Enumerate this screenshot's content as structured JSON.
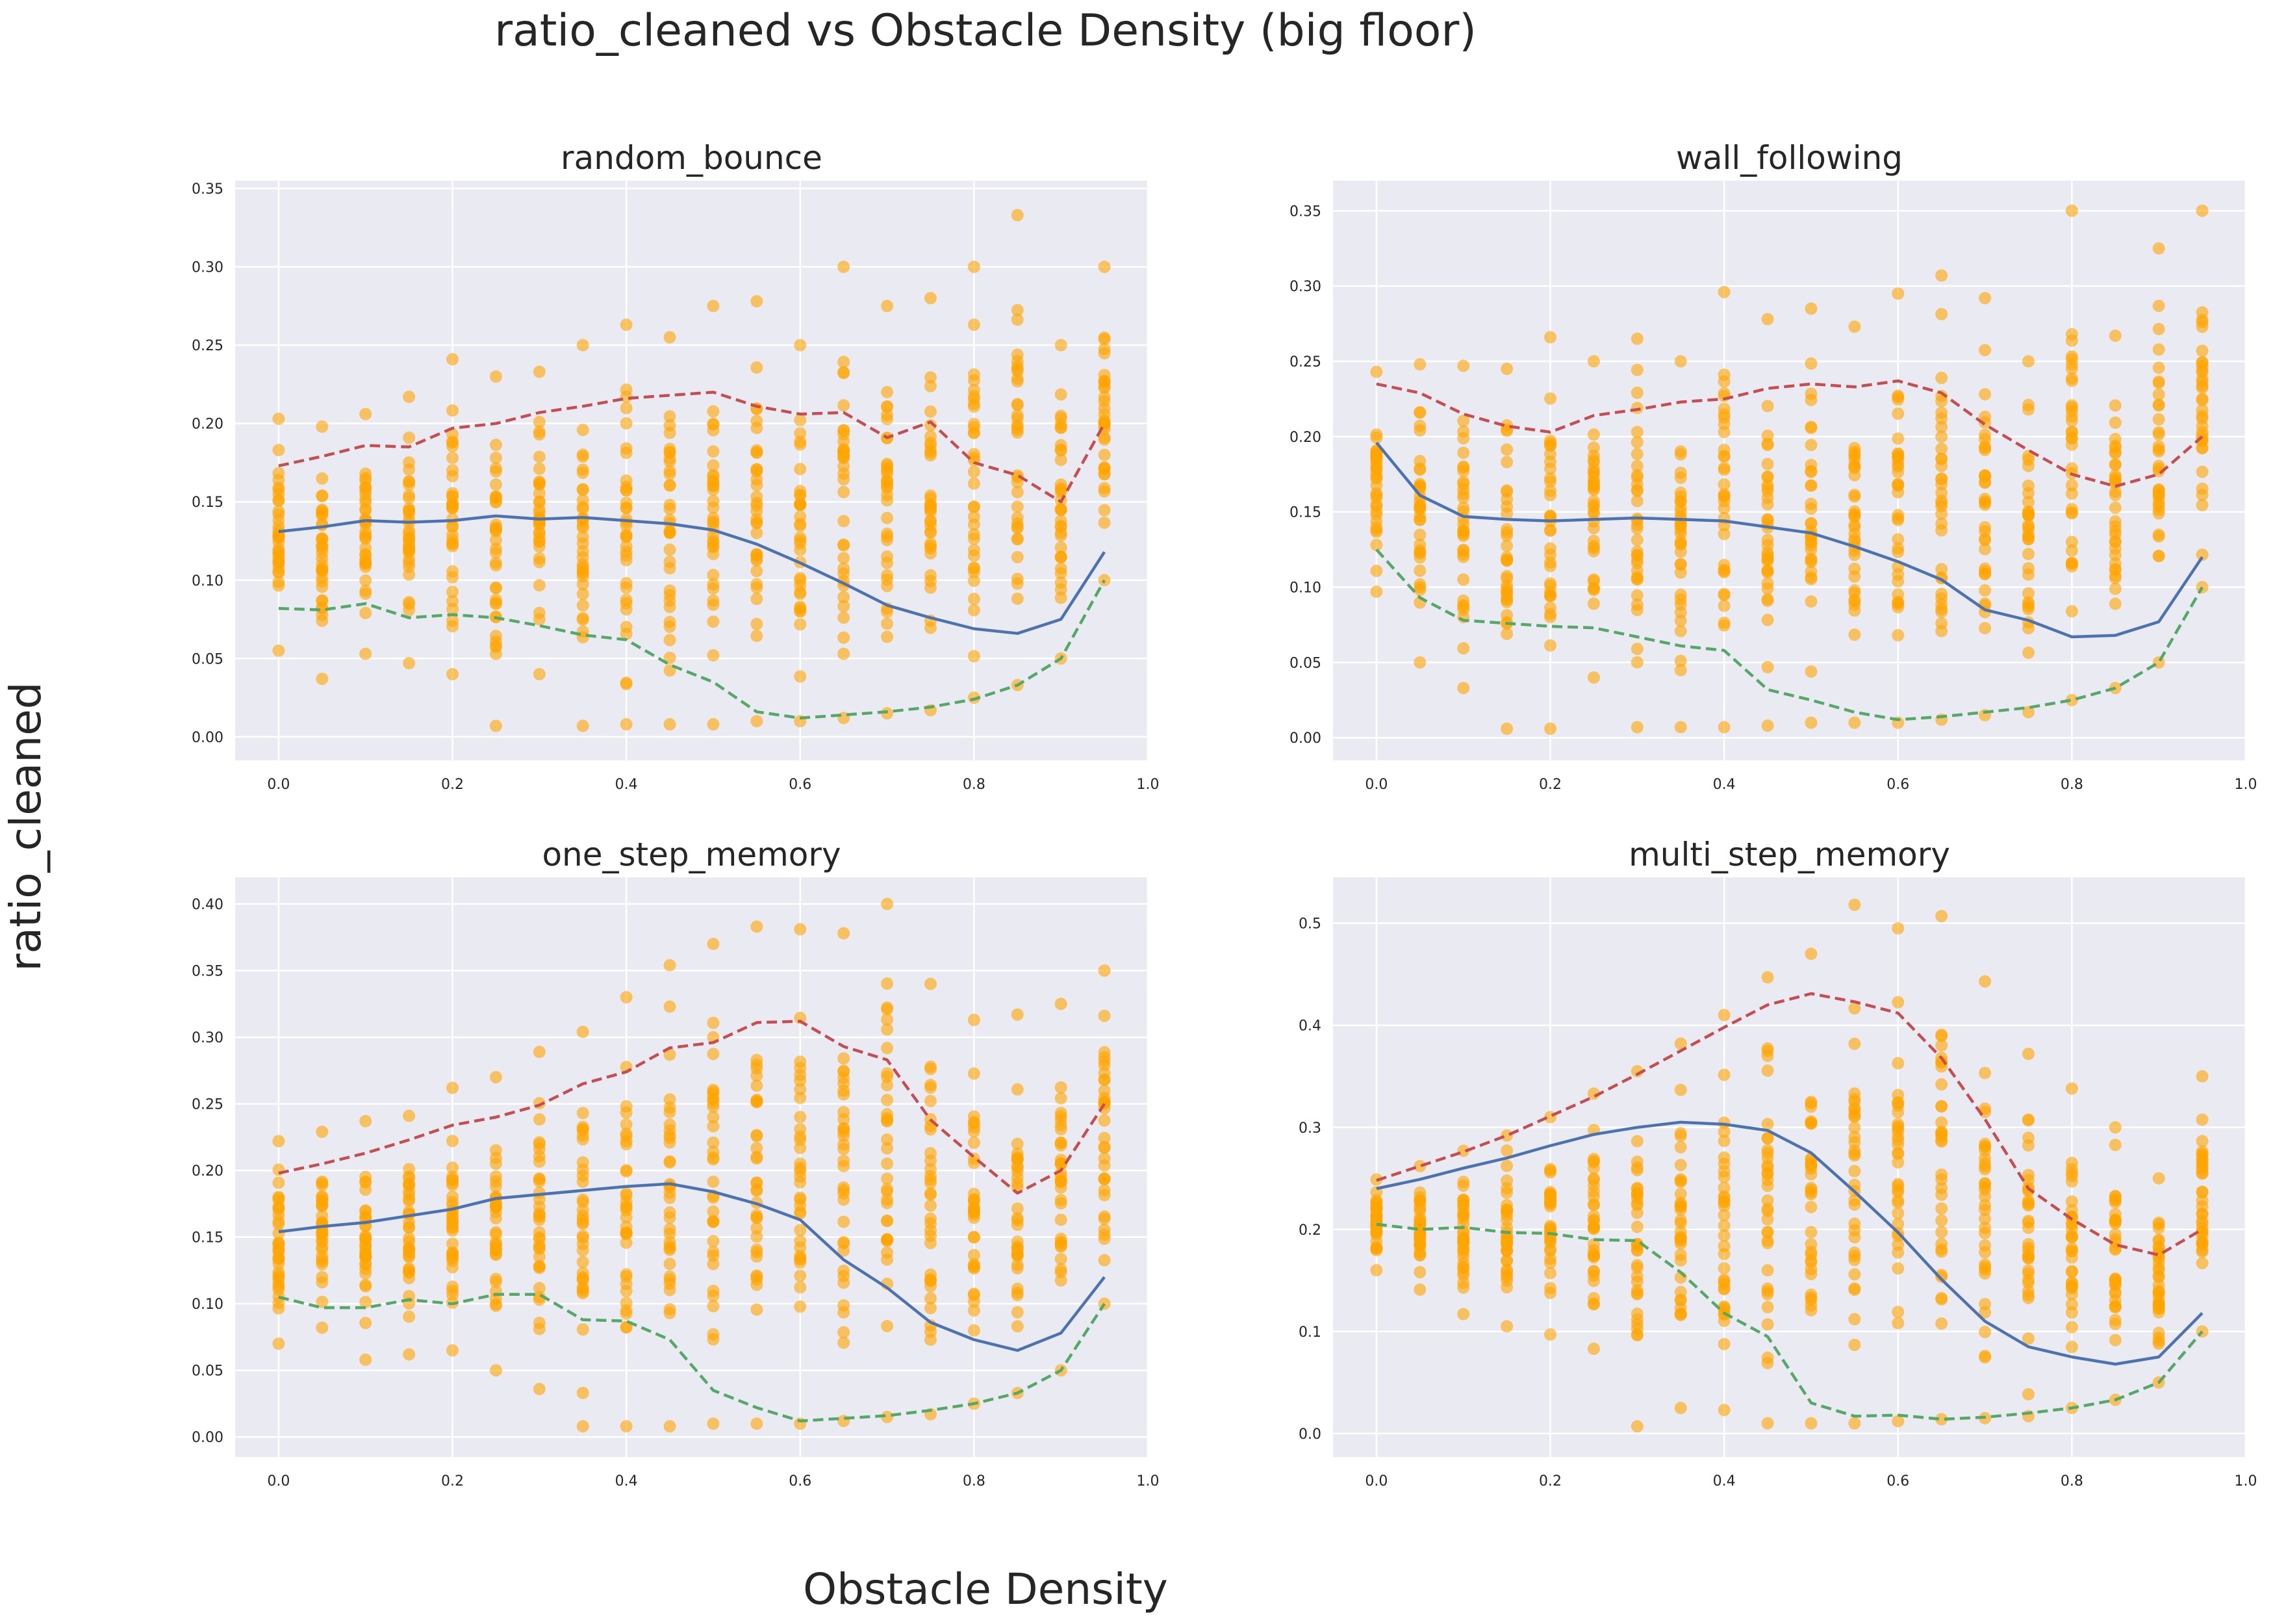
{
  "suptitle": "ratio_cleaned vs Obstacle Density (big floor)",
  "supxlabel": "Obstacle Density",
  "supylabel": "ratio_cleaned",
  "colors": {
    "background_axes": "#EAEAF2",
    "grid": "#FFFFFF",
    "scatter": "#FFA500",
    "mean_line": "#4C72B0",
    "upper_line": "#C44E52",
    "lower_line": "#55A868",
    "text": "#262626"
  },
  "chart_data": [
    {
      "type": "scatter",
      "title": "random_bounce",
      "xlim": [
        -0.05,
        1.0
      ],
      "ylim": [
        -0.015,
        0.355
      ],
      "xticks": [
        0.0,
        0.2,
        0.4,
        0.6,
        0.8,
        1.0
      ],
      "xtick_labels": [
        "0.0",
        "0.2",
        "0.4",
        "0.6",
        "0.8",
        "1.0"
      ],
      "yticks": [
        0.0,
        0.05,
        0.1,
        0.15,
        0.2,
        0.25,
        0.3,
        0.35
      ],
      "ytick_labels": [
        "0.00",
        "0.05",
        "0.10",
        "0.15",
        "0.20",
        "0.25",
        "0.30",
        "0.35"
      ],
      "grid": true,
      "x": [
        0.0,
        0.05,
        0.1,
        0.15,
        0.2,
        0.25,
        0.3,
        0.35,
        0.4,
        0.45,
        0.5,
        0.55,
        0.6,
        0.65,
        0.7,
        0.75,
        0.8,
        0.85,
        0.9,
        0.95
      ],
      "scatter_ranges": [
        [
          0.055,
          0.203
        ],
        [
          0.037,
          0.198
        ],
        [
          0.053,
          0.206
        ],
        [
          0.047,
          0.217
        ],
        [
          0.04,
          0.241
        ],
        [
          0.007,
          0.23
        ],
        [
          0.04,
          0.233
        ],
        [
          0.007,
          0.25
        ],
        [
          0.008,
          0.263
        ],
        [
          0.008,
          0.255
        ],
        [
          0.008,
          0.275
        ],
        [
          0.01,
          0.278
        ],
        [
          0.01,
          0.25
        ],
        [
          0.012,
          0.3
        ],
        [
          0.015,
          0.275
        ],
        [
          0.017,
          0.28
        ],
        [
          0.025,
          0.3
        ],
        [
          0.033,
          0.333
        ],
        [
          0.05,
          0.25
        ],
        [
          0.1,
          0.3
        ]
      ],
      "series": [
        {
          "name": "",
          "style": "solid",
          "values": [
            0.131,
            0.134,
            0.138,
            0.137,
            0.138,
            0.141,
            0.139,
            0.14,
            0.138,
            0.136,
            0.132,
            0.123,
            0.111,
            0.098,
            0.084,
            0.076,
            0.069,
            0.066,
            0.075,
            0.118
          ]
        },
        {
          "name": "",
          "style": "dashed",
          "values": [
            0.173,
            0.179,
            0.186,
            0.185,
            0.197,
            0.2,
            0.207,
            0.211,
            0.216,
            0.218,
            0.22,
            0.211,
            0.206,
            0.207,
            0.191,
            0.201,
            0.175,
            0.167,
            0.15,
            0.2
          ]
        },
        {
          "name": "",
          "style": "dashed",
          "values": [
            0.082,
            0.081,
            0.085,
            0.076,
            0.078,
            0.076,
            0.071,
            0.065,
            0.062,
            0.046,
            0.035,
            0.016,
            0.012,
            0.014,
            0.016,
            0.019,
            0.024,
            0.033,
            0.05,
            0.1
          ]
        }
      ]
    },
    {
      "type": "scatter",
      "title": "wall_following",
      "xlim": [
        -0.05,
        1.0
      ],
      "ylim": [
        -0.015,
        0.37
      ],
      "xticks": [
        0.0,
        0.2,
        0.4,
        0.6,
        0.8,
        1.0
      ],
      "xtick_labels": [
        "0.0",
        "0.2",
        "0.4",
        "0.6",
        "0.8",
        "1.0"
      ],
      "yticks": [
        0.0,
        0.05,
        0.1,
        0.15,
        0.2,
        0.25,
        0.3,
        0.35
      ],
      "ytick_labels": [
        "0.00",
        "0.05",
        "0.10",
        "0.15",
        "0.20",
        "0.25",
        "0.30",
        "0.35"
      ],
      "grid": true,
      "x": [
        0.0,
        0.05,
        0.1,
        0.15,
        0.2,
        0.25,
        0.3,
        0.35,
        0.4,
        0.45,
        0.5,
        0.55,
        0.6,
        0.65,
        0.7,
        0.75,
        0.8,
        0.85,
        0.9,
        0.95
      ],
      "scatter_ranges": [
        [
          0.097,
          0.243
        ],
        [
          0.05,
          0.248
        ],
        [
          0.033,
          0.247
        ],
        [
          0.006,
          0.245
        ],
        [
          0.006,
          0.266
        ],
        [
          0.04,
          0.25
        ],
        [
          0.007,
          0.265
        ],
        [
          0.007,
          0.25
        ],
        [
          0.007,
          0.296
        ],
        [
          0.008,
          0.278
        ],
        [
          0.01,
          0.285
        ],
        [
          0.01,
          0.273
        ],
        [
          0.01,
          0.295
        ],
        [
          0.012,
          0.307
        ],
        [
          0.015,
          0.292
        ],
        [
          0.017,
          0.25
        ],
        [
          0.025,
          0.35
        ],
        [
          0.033,
          0.267
        ],
        [
          0.05,
          0.325
        ],
        [
          0.1,
          0.35
        ]
      ],
      "series": [
        {
          "name": "",
          "style": "solid",
          "values": [
            0.196,
            0.161,
            0.147,
            0.145,
            0.144,
            0.145,
            0.146,
            0.145,
            0.144,
            0.14,
            0.136,
            0.127,
            0.117,
            0.105,
            0.085,
            0.078,
            0.067,
            0.068,
            0.077,
            0.12
          ]
        },
        {
          "name": "",
          "style": "dashed",
          "values": [
            0.235,
            0.229,
            0.215,
            0.207,
            0.203,
            0.214,
            0.218,
            0.223,
            0.225,
            0.232,
            0.235,
            0.233,
            0.237,
            0.229,
            0.208,
            0.191,
            0.175,
            0.167,
            0.175,
            0.2
          ]
        },
        {
          "name": "",
          "style": "dashed",
          "values": [
            0.125,
            0.093,
            0.078,
            0.076,
            0.074,
            0.073,
            0.067,
            0.061,
            0.058,
            0.032,
            0.025,
            0.017,
            0.012,
            0.014,
            0.017,
            0.02,
            0.025,
            0.033,
            0.05,
            0.1
          ]
        }
      ]
    },
    {
      "type": "scatter",
      "title": "one_step_memory",
      "xlim": [
        -0.05,
        1.0
      ],
      "ylim": [
        -0.015,
        0.42
      ],
      "xticks": [
        0.0,
        0.2,
        0.4,
        0.6,
        0.8,
        1.0
      ],
      "xtick_labels": [
        "0.0",
        "0.2",
        "0.4",
        "0.6",
        "0.8",
        "1.0"
      ],
      "yticks": [
        0.0,
        0.05,
        0.1,
        0.15,
        0.2,
        0.25,
        0.3,
        0.35,
        0.4
      ],
      "ytick_labels": [
        "0.00",
        "0.05",
        "0.10",
        "0.15",
        "0.20",
        "0.25",
        "0.30",
        "0.35",
        "0.40"
      ],
      "grid": true,
      "x": [
        0.0,
        0.05,
        0.1,
        0.15,
        0.2,
        0.25,
        0.3,
        0.35,
        0.4,
        0.45,
        0.5,
        0.55,
        0.6,
        0.65,
        0.7,
        0.75,
        0.8,
        0.85,
        0.9,
        0.95
      ],
      "scatter_ranges": [
        [
          0.07,
          0.222
        ],
        [
          0.082,
          0.229
        ],
        [
          0.058,
          0.237
        ],
        [
          0.062,
          0.241
        ],
        [
          0.065,
          0.262
        ],
        [
          0.05,
          0.27
        ],
        [
          0.036,
          0.289
        ],
        [
          0.008,
          0.304
        ],
        [
          0.008,
          0.33
        ],
        [
          0.008,
          0.354
        ],
        [
          0.01,
          0.37
        ],
        [
          0.01,
          0.383
        ],
        [
          0.01,
          0.381
        ],
        [
          0.012,
          0.378
        ],
        [
          0.015,
          0.4
        ],
        [
          0.017,
          0.34
        ],
        [
          0.025,
          0.313
        ],
        [
          0.033,
          0.317
        ],
        [
          0.05,
          0.325
        ],
        [
          0.1,
          0.35
        ]
      ],
      "series": [
        {
          "name": "",
          "style": "solid",
          "values": [
            0.154,
            0.158,
            0.161,
            0.166,
            0.171,
            0.179,
            0.182,
            0.185,
            0.188,
            0.19,
            0.184,
            0.175,
            0.163,
            0.133,
            0.112,
            0.086,
            0.073,
            0.065,
            0.078,
            0.12
          ]
        },
        {
          "name": "",
          "style": "dashed",
          "values": [
            0.198,
            0.205,
            0.213,
            0.223,
            0.234,
            0.24,
            0.249,
            0.265,
            0.274,
            0.292,
            0.296,
            0.311,
            0.312,
            0.293,
            0.283,
            0.238,
            0.21,
            0.183,
            0.2,
            0.25
          ]
        },
        {
          "name": "",
          "style": "dashed",
          "values": [
            0.105,
            0.097,
            0.097,
            0.103,
            0.1,
            0.107,
            0.107,
            0.088,
            0.087,
            0.073,
            0.035,
            0.022,
            0.012,
            0.014,
            0.016,
            0.02,
            0.025,
            0.033,
            0.05,
            0.1
          ]
        }
      ]
    },
    {
      "type": "scatter",
      "title": "multi_step_memory",
      "xlim": [
        -0.05,
        1.0
      ],
      "ylim": [
        -0.023,
        0.545
      ],
      "xticks": [
        0.0,
        0.2,
        0.4,
        0.6,
        0.8,
        1.0
      ],
      "xtick_labels": [
        "0.0",
        "0.2",
        "0.4",
        "0.6",
        "0.8",
        "1.0"
      ],
      "yticks": [
        0.0,
        0.1,
        0.2,
        0.3,
        0.4,
        0.5
      ],
      "ytick_labels": [
        "0.0",
        "0.1",
        "0.2",
        "0.3",
        "0.4",
        "0.5"
      ],
      "grid": true,
      "x": [
        0.0,
        0.05,
        0.1,
        0.15,
        0.2,
        0.25,
        0.3,
        0.35,
        0.4,
        0.45,
        0.5,
        0.55,
        0.6,
        0.65,
        0.7,
        0.75,
        0.8,
        0.85,
        0.9,
        0.95
      ],
      "scatter_ranges": [
        [
          0.16,
          0.249
        ],
        [
          0.141,
          0.262
        ],
        [
          0.117,
          0.277
        ],
        [
          0.105,
          0.292
        ],
        [
          0.097,
          0.31
        ],
        [
          0.083,
          0.333
        ],
        [
          0.007,
          0.355
        ],
        [
          0.025,
          0.382
        ],
        [
          0.023,
          0.41
        ],
        [
          0.01,
          0.447
        ],
        [
          0.01,
          0.47
        ],
        [
          0.01,
          0.518
        ],
        [
          0.012,
          0.495
        ],
        [
          0.014,
          0.507
        ],
        [
          0.015,
          0.443
        ],
        [
          0.017,
          0.372
        ],
        [
          0.025,
          0.338
        ],
        [
          0.033,
          0.3
        ],
        [
          0.05,
          0.25
        ],
        [
          0.1,
          0.35
        ]
      ],
      "series": [
        {
          "name": "",
          "style": "solid",
          "values": [
            0.24,
            0.249,
            0.26,
            0.27,
            0.282,
            0.293,
            0.3,
            0.305,
            0.303,
            0.297,
            0.275,
            0.237,
            0.197,
            0.151,
            0.11,
            0.085,
            0.075,
            0.068,
            0.075,
            0.118
          ]
        },
        {
          "name": "",
          "style": "dashed",
          "values": [
            0.248,
            0.262,
            0.276,
            0.292,
            0.311,
            0.33,
            0.352,
            0.375,
            0.398,
            0.42,
            0.431,
            0.423,
            0.412,
            0.368,
            0.308,
            0.24,
            0.21,
            0.185,
            0.175,
            0.2
          ]
        },
        {
          "name": "",
          "style": "dashed",
          "values": [
            0.205,
            0.2,
            0.202,
            0.197,
            0.196,
            0.19,
            0.189,
            0.158,
            0.118,
            0.095,
            0.03,
            0.017,
            0.018,
            0.014,
            0.016,
            0.02,
            0.025,
            0.033,
            0.05,
            0.1
          ]
        }
      ]
    }
  ]
}
